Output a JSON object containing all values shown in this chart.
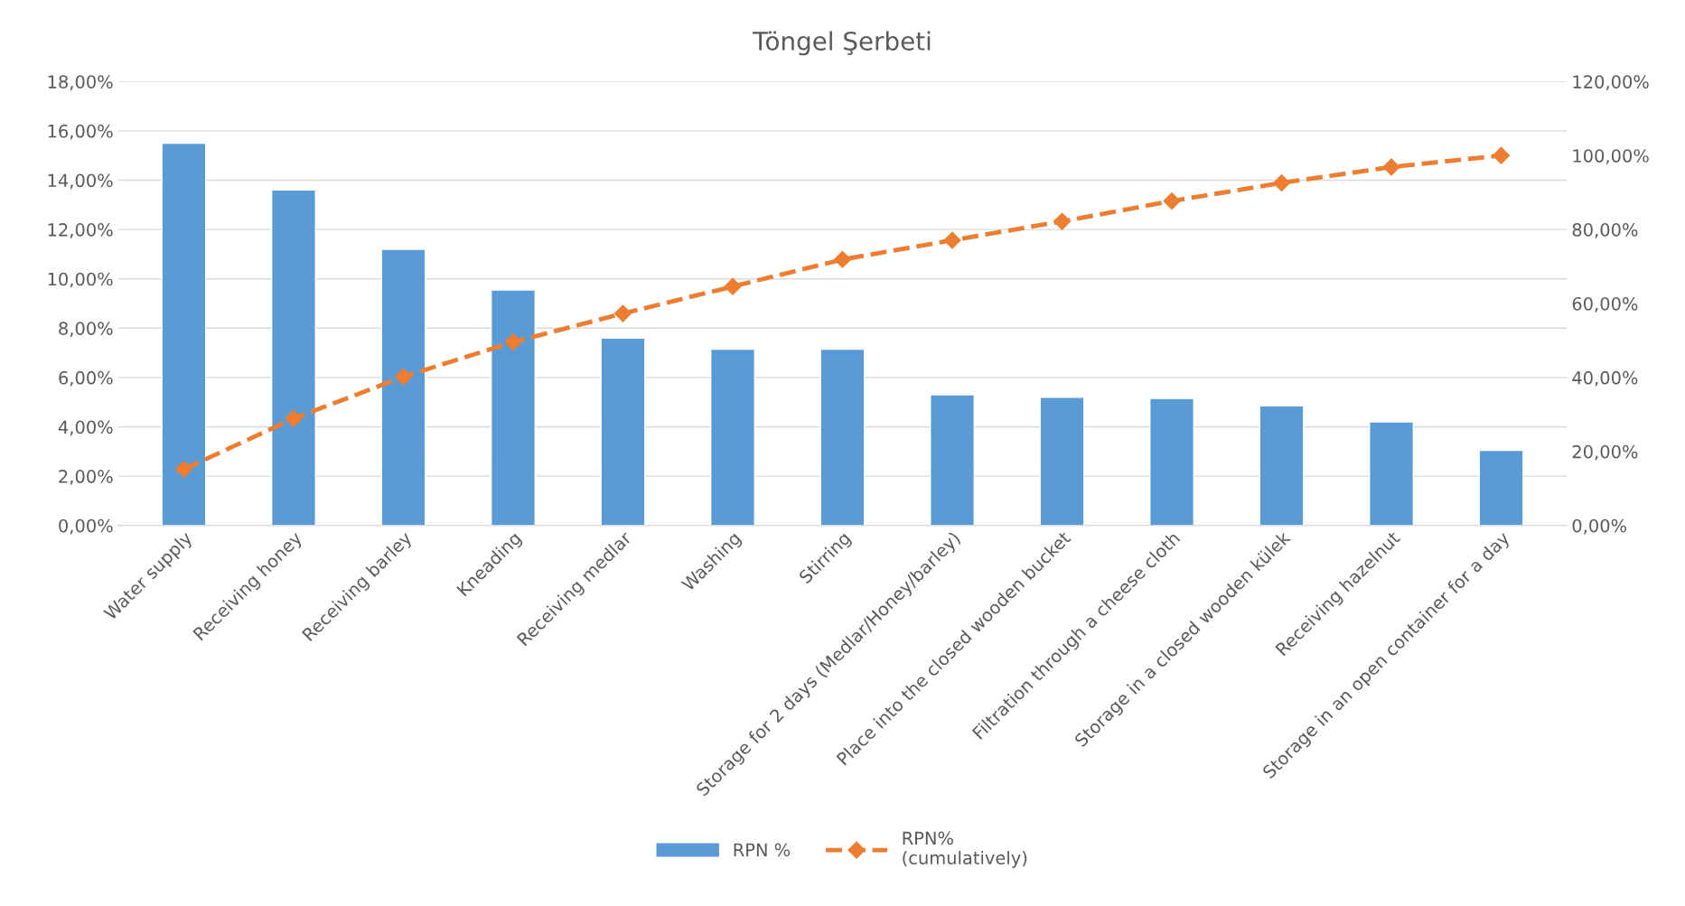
{
  "chart_data": {
    "type": "bar",
    "title": "Töngel Şerbeti",
    "categories": [
      "Water supply",
      "Receiving honey",
      "Receiving barley",
      "Kneading",
      "Receiving medlar",
      "Washing",
      "Stirring",
      "Storage for 2 days (Medlar/Honey/barley)",
      "Place into the closed wooden bucket",
      "Filtration through a cheese cloth",
      "Storage in a closed wooden külek",
      "Receiving hazelnut",
      "Storage in an open container for a day"
    ],
    "series": [
      {
        "name": "RPN %",
        "color": "#5b9bd5",
        "values": [
          15.5,
          13.6,
          11.2,
          9.55,
          7.6,
          7.15,
          7.15,
          5.3,
          5.2,
          5.15,
          4.85,
          4.2,
          3.05
        ]
      },
      {
        "name": "RPN%\n(cumulatively)",
        "type": "line",
        "axis": "y2",
        "color": "#ed7d31",
        "marker": "diamond",
        "line_style": "dashed",
        "values": [
          15.2,
          28.9,
          40.2,
          49.6,
          57.3,
          64.6,
          71.9,
          77.1,
          82.2,
          87.7,
          92.6,
          96.9,
          100
        ]
      }
    ],
    "ylim": [
      0,
      18
    ],
    "yticks": [
      {
        "value": 0,
        "label": "0,00%"
      },
      {
        "value": 2,
        "label": "2,00%"
      },
      {
        "value": 4,
        "label": "4,00%"
      },
      {
        "value": 6,
        "label": "6,00%"
      },
      {
        "value": 8,
        "label": "8,00%"
      },
      {
        "value": 10,
        "label": "10,00%"
      },
      {
        "value": 12,
        "label": "12,00%"
      },
      {
        "value": 14,
        "label": "14,00%"
      },
      {
        "value": 16,
        "label": "16,00%"
      },
      {
        "value": 18,
        "label": "18,00%"
      }
    ],
    "y2lim": [
      0,
      120
    ],
    "y2ticks": [
      {
        "value": 0,
        "label": "0,00%"
      },
      {
        "value": 20,
        "label": "20,00%"
      },
      {
        "value": 40,
        "label": "40,00%"
      },
      {
        "value": 60,
        "label": "60,00%"
      },
      {
        "value": 80,
        "label": "80,00%"
      },
      {
        "value": 100,
        "label": "100,00%"
      },
      {
        "value": 120,
        "label": "120,00%"
      }
    ],
    "grid": "y",
    "legend": "bottom"
  }
}
